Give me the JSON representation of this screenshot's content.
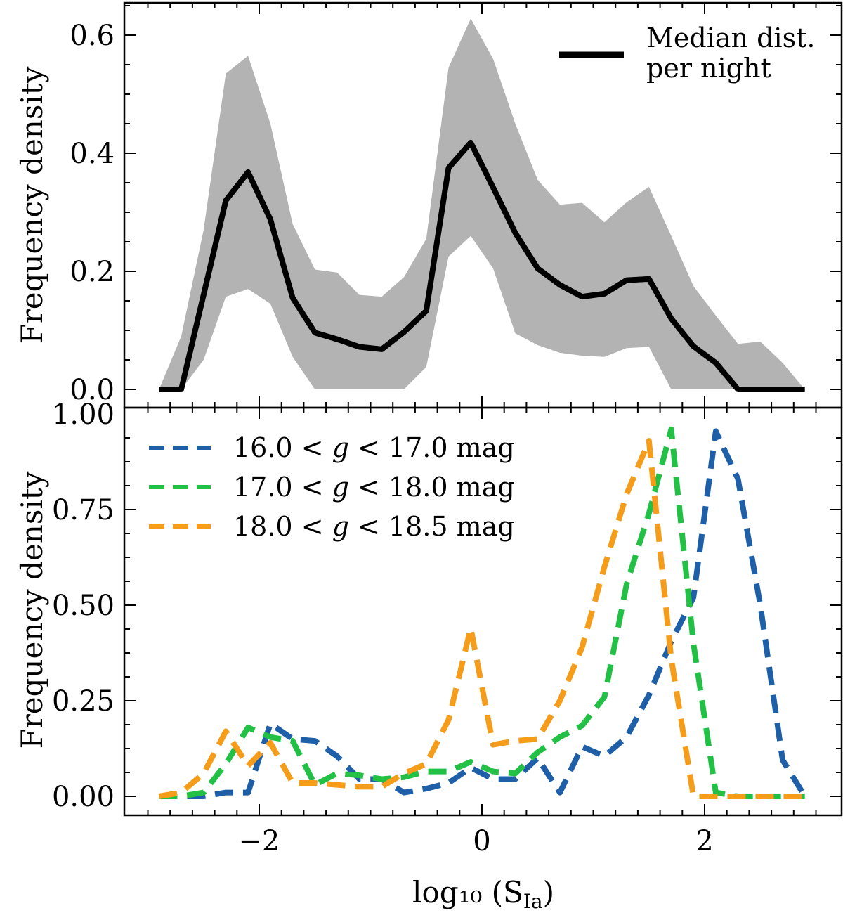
{
  "chart_data": [
    {
      "type": "line",
      "panel": "top",
      "title": "",
      "xlabel": "",
      "ylabel": "Frequency density",
      "xlim": [
        -3.0,
        3.0
      ],
      "ylim": [
        0.0,
        0.65
      ],
      "x_ticks": [
        -2,
        0,
        2
      ],
      "x_tick_labels": [
        "",
        "",
        ""
      ],
      "y_ticks": [
        0.0,
        0.2,
        0.4,
        0.6
      ],
      "y_tick_labels": [
        "0.0",
        "0.2",
        "0.4",
        "0.6"
      ],
      "band": {
        "x": [
          -2.9,
          -2.7,
          -2.5,
          -2.3,
          -2.1,
          -1.9,
          -1.7,
          -1.5,
          -1.3,
          -1.1,
          -0.9,
          -0.7,
          -0.5,
          -0.3,
          -0.1,
          0.1,
          0.3,
          0.5,
          0.7,
          0.9,
          1.1,
          1.3,
          1.5,
          1.7,
          1.9,
          2.1,
          2.3,
          2.5,
          2.7,
          2.9
        ],
        "lower": [
          0.0,
          0.0,
          0.05,
          0.157,
          0.17,
          0.145,
          0.055,
          0.0,
          0.0,
          0.0,
          0.0,
          0.0,
          0.038,
          0.225,
          0.26,
          0.205,
          0.095,
          0.075,
          0.062,
          0.057,
          0.055,
          0.07,
          0.072,
          0.0,
          0.0,
          0.0,
          0.0,
          0.0,
          0.0,
          0.0
        ],
        "upper": [
          0.0,
          0.09,
          0.27,
          0.535,
          0.565,
          0.45,
          0.28,
          0.203,
          0.198,
          0.16,
          0.157,
          0.19,
          0.255,
          0.545,
          0.628,
          0.56,
          0.45,
          0.355,
          0.313,
          0.316,
          0.283,
          0.317,
          0.343,
          0.26,
          0.175,
          0.125,
          0.077,
          0.081,
          0.045,
          0.0
        ]
      },
      "series": [
        {
          "name": "Median dist. per night",
          "color": "#000000",
          "x": [
            -2.9,
            -2.7,
            -2.5,
            -2.3,
            -2.1,
            -1.9,
            -1.7,
            -1.5,
            -1.3,
            -1.1,
            -0.9,
            -0.7,
            -0.5,
            -0.3,
            -0.1,
            0.1,
            0.3,
            0.5,
            0.7,
            0.9,
            1.1,
            1.3,
            1.5,
            1.7,
            1.9,
            2.1,
            2.3,
            2.5,
            2.7,
            2.9
          ],
          "values": [
            0.0,
            0.0,
            0.16,
            0.32,
            0.368,
            0.288,
            0.155,
            0.096,
            0.085,
            0.072,
            0.068,
            0.097,
            0.133,
            0.375,
            0.418,
            0.342,
            0.265,
            0.205,
            0.177,
            0.157,
            0.162,
            0.185,
            0.187,
            0.12,
            0.073,
            0.045,
            0.0,
            0.0,
            0.0,
            0.0
          ]
        }
      ],
      "legend": {
        "position": "upper right",
        "entries": [
          {
            "line1": "Median dist.",
            "line2": "per night",
            "color": "#000000"
          }
        ]
      }
    },
    {
      "type": "line",
      "panel": "bottom",
      "title": "",
      "xlabel": "log₁₀ (S",
      "xlabel_sub": "Ia",
      "xlabel_close": ")",
      "ylabel": "Frequency density",
      "xlim": [
        -3.0,
        3.0
      ],
      "ylim": [
        -0.04,
        1.0
      ],
      "x_ticks": [
        -2,
        0,
        2
      ],
      "x_tick_labels": [
        "−2",
        "0",
        "2"
      ],
      "y_ticks": [
        0.0,
        0.25,
        0.5,
        0.75,
        1.0
      ],
      "y_tick_labels": [
        "0.00",
        "0.25",
        "0.50",
        "0.75",
        "1.00"
      ],
      "series": [
        {
          "name": "16.0 < g < 17.0 mag",
          "pre": "16.0 < ",
          "var": "g",
          "post": " < 17.0 mag",
          "color": "#1f5fa8",
          "x": [
            -2.9,
            -2.7,
            -2.5,
            -2.3,
            -2.1,
            -1.9,
            -1.7,
            -1.5,
            -1.3,
            -1.1,
            -0.9,
            -0.7,
            -0.5,
            -0.3,
            -0.1,
            0.1,
            0.3,
            0.5,
            0.7,
            0.9,
            1.1,
            1.3,
            1.5,
            1.7,
            1.9,
            2.1,
            2.3,
            2.5,
            2.7,
            2.9
          ],
          "values": [
            0.0,
            0.0,
            0.0,
            0.01,
            0.01,
            0.19,
            0.15,
            0.145,
            0.105,
            0.045,
            0.045,
            0.01,
            0.02,
            0.035,
            0.075,
            0.045,
            0.045,
            0.1,
            0.01,
            0.13,
            0.105,
            0.155,
            0.265,
            0.405,
            0.52,
            0.955,
            0.83,
            0.5,
            0.095,
            0.0
          ]
        },
        {
          "name": "17.0 < g < 18.0 mag",
          "pre": "17.0 < ",
          "var": "g",
          "post": " < 18.0 mag",
          "color": "#22c044",
          "x": [
            -2.9,
            -2.7,
            -2.5,
            -2.3,
            -2.1,
            -1.9,
            -1.7,
            -1.5,
            -1.3,
            -1.1,
            -0.9,
            -0.7,
            -0.5,
            -0.3,
            -0.1,
            0.1,
            0.3,
            0.5,
            0.7,
            0.9,
            1.1,
            1.3,
            1.5,
            1.7,
            1.9,
            2.1,
            2.3,
            2.5,
            2.7,
            2.9
          ],
          "values": [
            0.0,
            0.0,
            0.01,
            0.085,
            0.18,
            0.155,
            0.145,
            0.03,
            0.06,
            0.055,
            0.045,
            0.05,
            0.065,
            0.065,
            0.09,
            0.065,
            0.06,
            0.115,
            0.155,
            0.185,
            0.26,
            0.555,
            0.74,
            0.96,
            0.4,
            0.01,
            0.0,
            0.0,
            0.0,
            0.0
          ]
        },
        {
          "name": "18.0 < g < 18.5 mag",
          "pre": "18.0 < ",
          "var": "g",
          "post": " < 18.5 mag",
          "color": "#f59c1a",
          "x": [
            -2.9,
            -2.7,
            -2.5,
            -2.3,
            -2.1,
            -1.9,
            -1.7,
            -1.5,
            -1.3,
            -1.1,
            -0.9,
            -0.7,
            -0.5,
            -0.3,
            -0.1,
            0.1,
            0.3,
            0.5,
            0.7,
            0.9,
            1.1,
            1.3,
            1.5,
            1.7,
            1.9,
            2.1,
            2.3,
            2.5,
            2.7,
            2.9
          ],
          "values": [
            0.0,
            0.01,
            0.06,
            0.17,
            0.08,
            0.14,
            0.035,
            0.035,
            0.03,
            0.025,
            0.025,
            0.06,
            0.085,
            0.2,
            0.44,
            0.135,
            0.145,
            0.15,
            0.25,
            0.39,
            0.6,
            0.79,
            0.93,
            0.36,
            0.0,
            0.0,
            0.0,
            0.0,
            0.0,
            0.0
          ]
        }
      ],
      "legend": {
        "position": "upper left"
      }
    }
  ]
}
